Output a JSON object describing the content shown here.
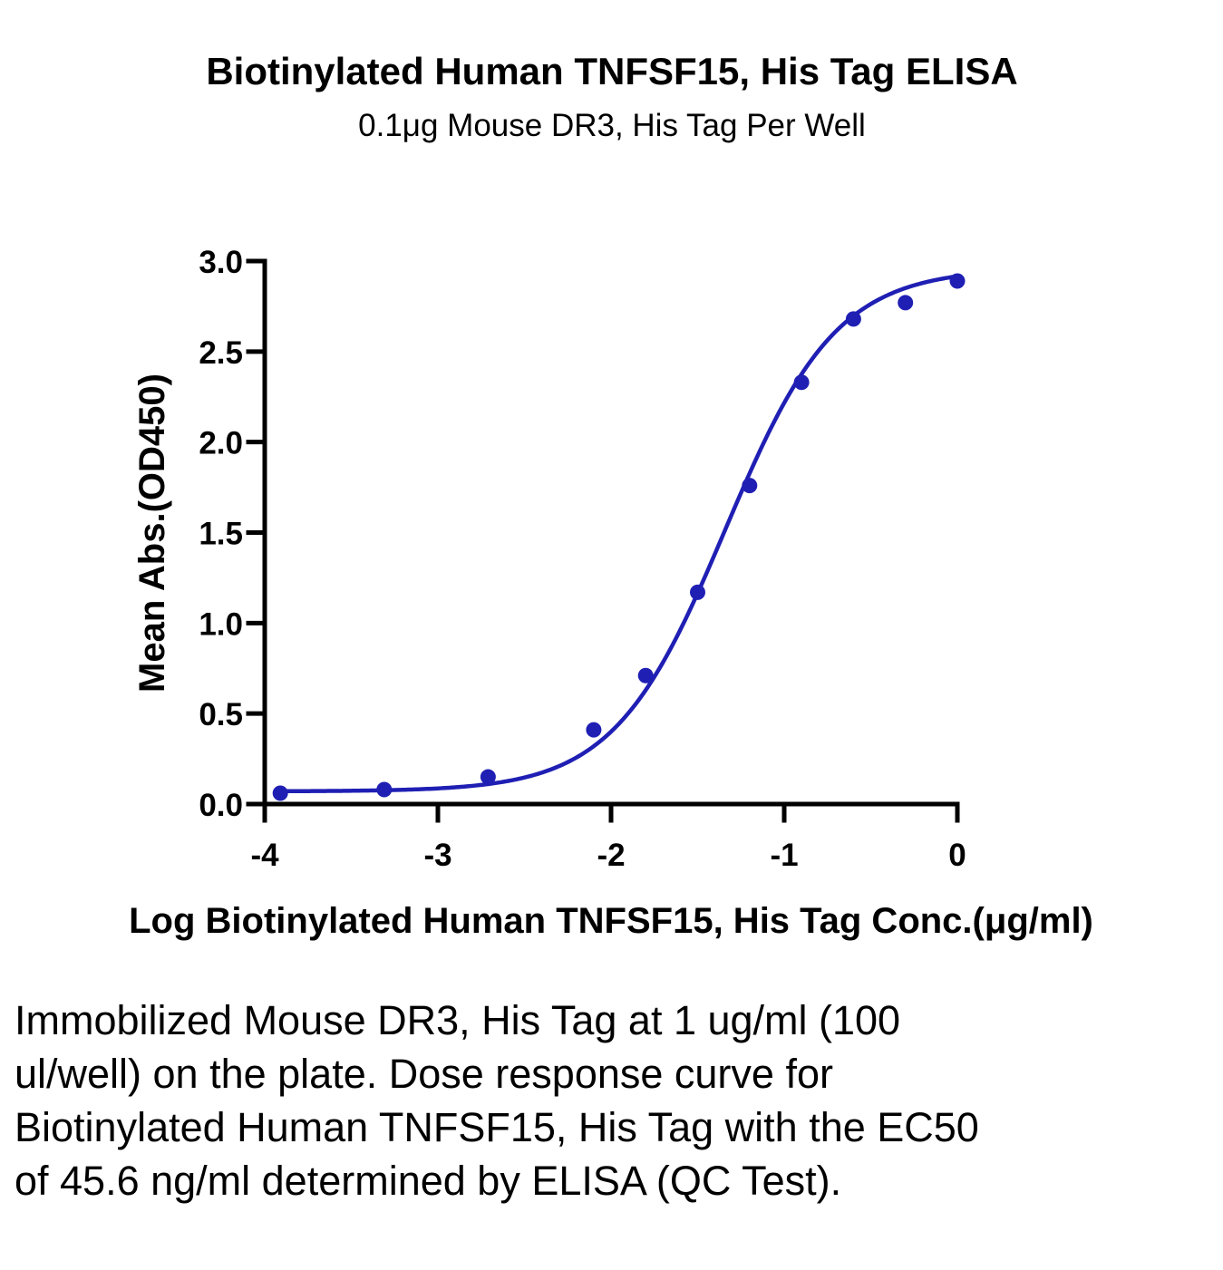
{
  "chart_data": {
    "type": "scatter",
    "title": "Biotinylated Human TNFSF15, His Tag ELISA",
    "subtitle": "0.1μg Mouse DR3, His Tag Per Well",
    "xlabel": "Log Biotinylated Human TNFSF15, His Tag Conc.(μg/ml)",
    "ylabel": "Mean Abs.(OD450)",
    "xlim": [
      -4,
      0
    ],
    "ylim": [
      0,
      3.0
    ],
    "x_ticks": [
      -4,
      -3,
      -2,
      -1,
      0
    ],
    "x_tick_labels": [
      "-4",
      "-3",
      "-2",
      "-1",
      "0"
    ],
    "y_ticks": [
      0,
      0.5,
      1.0,
      1.5,
      2.0,
      2.5,
      3.0
    ],
    "y_tick_labels": [
      "0.0",
      "0.5",
      "1.0",
      "1.5",
      "2.0",
      "2.5",
      "3.0"
    ],
    "grid": false,
    "series": [
      {
        "x": [
          -3.91,
          -3.31,
          -2.71,
          -2.1,
          -1.8,
          -1.5,
          -1.2,
          -0.9,
          -0.6,
          -0.3,
          0.0
        ],
        "y": [
          0.06,
          0.08,
          0.15,
          0.41,
          0.71,
          1.17,
          1.76,
          2.33,
          2.68,
          2.77,
          2.89
        ],
        "fit": {
          "model": "4PL",
          "bottom": 0.07,
          "top": 2.96,
          "logEC50": -1.341,
          "hill": 1.35
        },
        "color": "#1f1fb4"
      }
    ]
  },
  "caption": "Immobilized Mouse DR3, His Tag at 1 ug/ml (100 ul/well) on the plate. Dose response curve for Biotinylated Human TNFSF15, His Tag with the EC50 of 45.6 ng/ml determined by ELISA (QC Test)."
}
